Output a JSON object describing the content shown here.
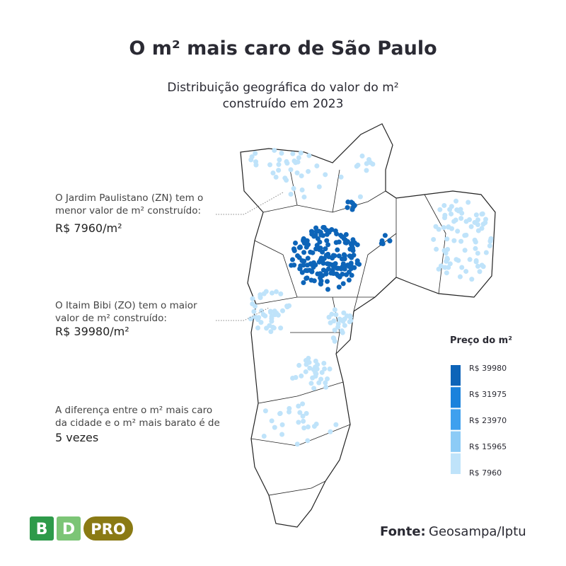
{
  "title": "O m² mais caro de São Paulo",
  "subtitle": [
    "Distribuição geográfica do valor do m²",
    "construído em 2023"
  ],
  "annotations": [
    {
      "lines": [
        "O Jardim Paulistano (ZN) tem o",
        "menor valor de m² construído:"
      ],
      "value": "R$ 7960/m²"
    },
    {
      "lines": [
        "O Itaim Bibi (ZO) tem o maior",
        "valor de m² construído:"
      ],
      "value": "R$ 39980/m²"
    },
    {
      "lines": [
        "A diferença entre o m² mais caro",
        "da cidade e o m² mais barato é de"
      ],
      "value": "5 vezes"
    }
  ],
  "legend": {
    "title": "Preço do m²",
    "ticks": [
      {
        "value": 39980,
        "label": "R$ 39980"
      },
      {
        "value": 31975,
        "label": "R$ 31975"
      },
      {
        "value": 23970,
        "label": "R$ 23970"
      },
      {
        "value": 15965,
        "label": "R$ 15965"
      },
      {
        "value": 7960,
        "label": "R$ 7960"
      }
    ],
    "colors": [
      "#0d64b8",
      "#1a82dc",
      "#3fa0ee",
      "#8ccbf6",
      "#bfe3fa"
    ]
  },
  "source": {
    "label": "Fonte:",
    "text": "Geosampa/Iptu"
  },
  "logo": [
    "B",
    "D",
    "PRO"
  ]
}
